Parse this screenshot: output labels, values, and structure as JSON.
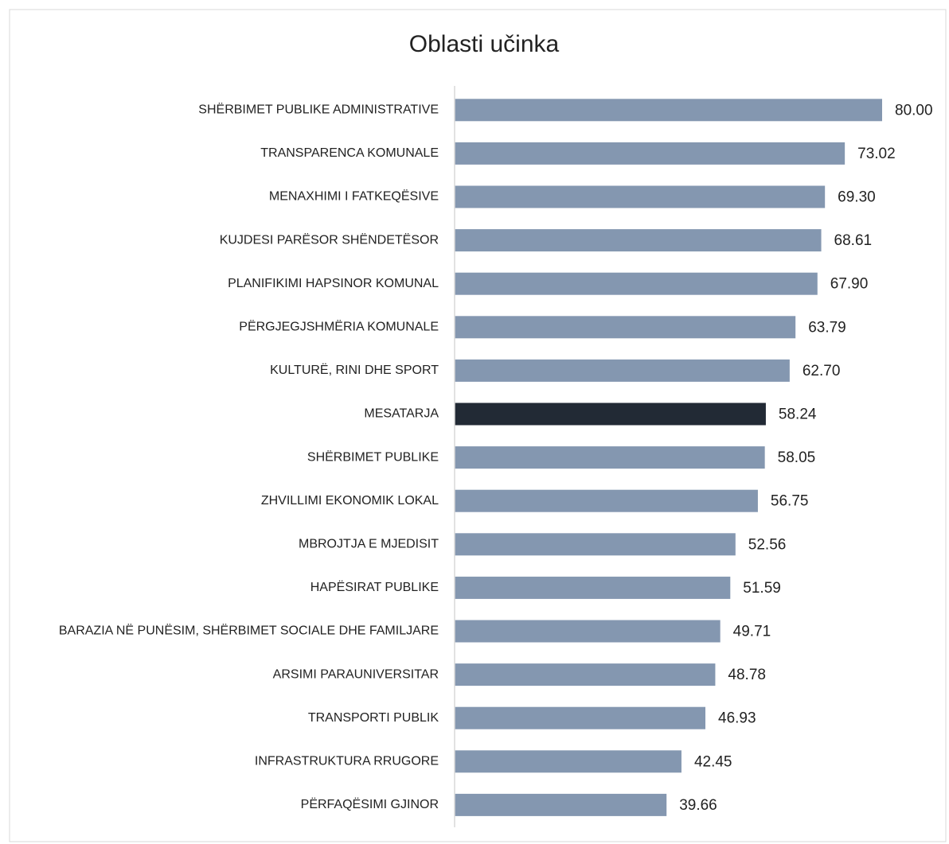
{
  "chart_data": {
    "type": "hbar",
    "title": "Oblasti učinka",
    "categories": [
      "SHËRBIMET PUBLIKE ADMINISTRATIVE",
      "TRANSPARENCA KOMUNALE",
      "MENAXHIMI I FATKEQËSIVE",
      "KUJDESI PARËSOR SHËNDETËSOR",
      "PLANIFIKIMI HAPSINOR KOMUNAL",
      "PËRGJEGJSHMËRIA KOMUNALE",
      "KULTURË, RINI DHE SPORT",
      "MESATARJA",
      "SHËRBIMET PUBLIKE",
      "ZHVILLIMI EKONOMIK LOKAL",
      "MBROJTJA E MJEDISIT",
      "HAPËSIRAT PUBLIKE",
      "BARAZIA NË PUNËSIM, SHËRBIMET SOCIALE DHE FAMILJARE",
      "ARSIMI PARAUNIVERSITAR",
      "TRANSPORTI PUBLIK",
      "INFRASTRUKTURA RRUGORE",
      "PËRFAQËSIMI GJINOR"
    ],
    "values": [
      80.0,
      73.02,
      69.3,
      68.61,
      67.9,
      63.79,
      62.7,
      58.24,
      58.05,
      56.75,
      52.56,
      51.59,
      49.71,
      48.78,
      46.93,
      42.45,
      39.66
    ],
    "value_labels": [
      "80.00",
      "73.02",
      "69.30",
      "68.61",
      "67.90",
      "63.79",
      "62.70",
      "58.24",
      "58.05",
      "56.75",
      "52.56",
      "51.59",
      "49.71",
      "48.78",
      "46.93",
      "42.45",
      "39.66"
    ],
    "colors": [
      "#8497b0",
      "#8497b0",
      "#8497b0",
      "#8497b0",
      "#8497b0",
      "#8497b0",
      "#8497b0",
      "#222a35",
      "#8497b0",
      "#8497b0",
      "#8497b0",
      "#8497b0",
      "#8497b0",
      "#8497b0",
      "#8497b0",
      "#8497b0",
      "#8497b0"
    ],
    "xlim": [
      0,
      80
    ]
  }
}
